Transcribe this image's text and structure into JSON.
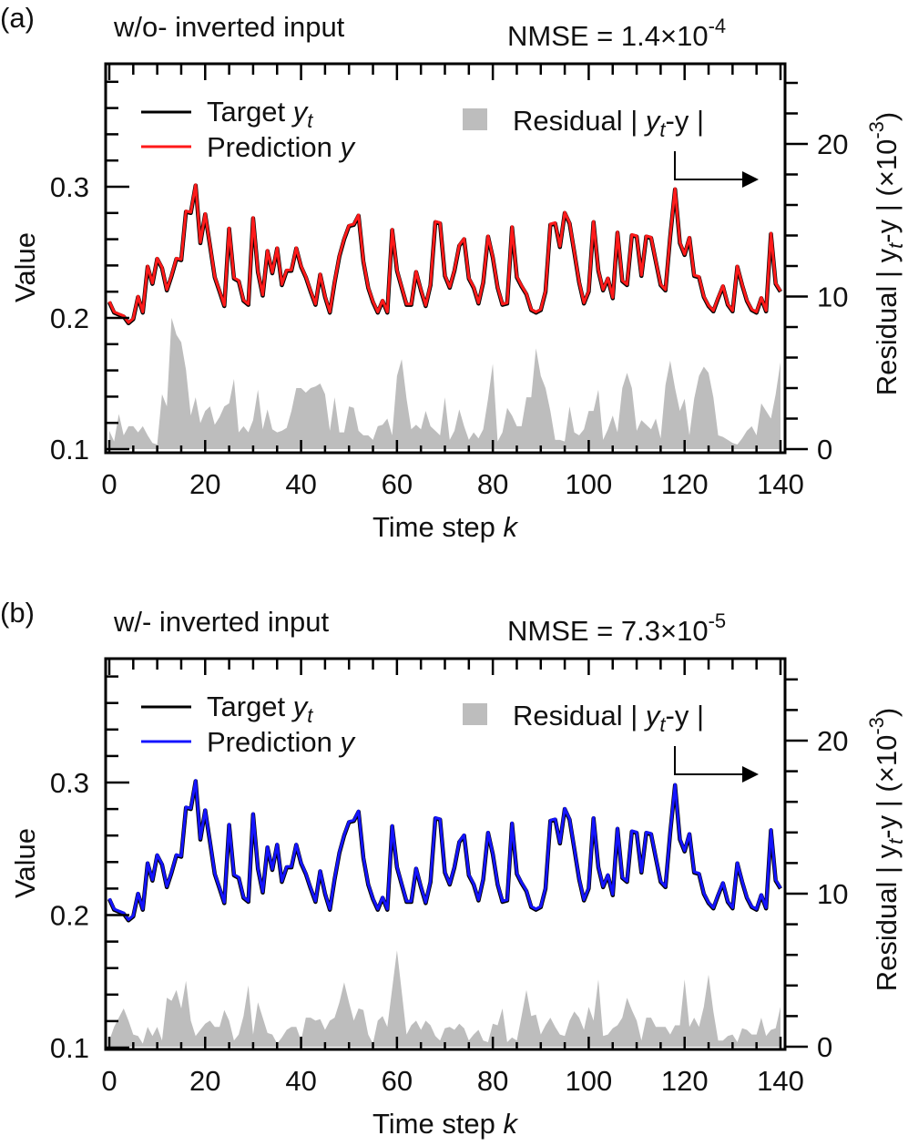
{
  "chart_data": [
    {
      "type": "line",
      "panel_label": "(a)",
      "title": "w/o- inverted input",
      "nmse_text": "NMSE = 1.4×10",
      "nmse_exp": "-4",
      "xlabel": "Time step ",
      "xlabel_var": "k",
      "ylabel": "Value",
      "y2label": "Residual | y",
      "y2label_sub": "t",
      "y2label_rest": "-y | (×10",
      "y2label_exp": "-3",
      "y2label_close": ")",
      "xlim": [
        -0.7,
        141
      ],
      "ylim": [
        0.1,
        0.394
      ],
      "y2lim": [
        0,
        25.3
      ],
      "xticks": [
        "0",
        "20",
        "40",
        "60",
        "80",
        "100",
        "120",
        "140"
      ],
      "yticks": [
        "0.1",
        "0.2",
        "0.3"
      ],
      "y2ticks": [
        "0",
        "10",
        "20"
      ],
      "legend": {
        "target": "Target ",
        "target_var": "y",
        "target_sub": "t",
        "prediction": "Prediction ",
        "prediction_var": "y",
        "residual": "Residual | ",
        "residual_var": "y",
        "residual_sub": "t",
        "residual_rest": "-y |"
      },
      "colors": {
        "target": "#000000",
        "prediction": "#ff1a1a",
        "residual": "#bdbdbd"
      },
      "target": [
        0.212,
        0.204,
        0.2025,
        0.201,
        0.196,
        0.199,
        0.216,
        0.204,
        0.239,
        0.226,
        0.245,
        0.238,
        0.221,
        0.232,
        0.245,
        0.244,
        0.281,
        0.28,
        0.301,
        0.257,
        0.279,
        0.255,
        0.231,
        0.22,
        0.209,
        0.268,
        0.23,
        0.228,
        0.213,
        0.21,
        0.276,
        0.235,
        0.217,
        0.251,
        0.234,
        0.253,
        0.225,
        0.236,
        0.236,
        0.253,
        0.239,
        0.231,
        0.22,
        0.21,
        0.233,
        0.216,
        0.204,
        0.227,
        0.247,
        0.26,
        0.27,
        0.271,
        0.278,
        0.243,
        0.223,
        0.212,
        0.204,
        0.213,
        0.204,
        0.267,
        0.236,
        0.223,
        0.21,
        0.21,
        0.235,
        0.221,
        0.209,
        0.225,
        0.273,
        0.272,
        0.232,
        0.223,
        0.236,
        0.255,
        0.26,
        0.23,
        0.223,
        0.211,
        0.227,
        0.262,
        0.246,
        0.223,
        0.21,
        0.211,
        0.269,
        0.231,
        0.224,
        0.218,
        0.206,
        0.204,
        0.206,
        0.22,
        0.271,
        0.272,
        0.254,
        0.28,
        0.272,
        0.25,
        0.227,
        0.211,
        0.22,
        0.273,
        0.236,
        0.221,
        0.23,
        0.215,
        0.265,
        0.228,
        0.225,
        0.263,
        0.262,
        0.232,
        0.262,
        0.261,
        0.243,
        0.225,
        0.221,
        0.262,
        0.298,
        0.257,
        0.248,
        0.261,
        0.232,
        0.231,
        0.216,
        0.209,
        0.205,
        0.215,
        0.224,
        0.21,
        0.205,
        0.239,
        0.225,
        0.213,
        0.206,
        0.204,
        0.215,
        0.205,
        0.264,
        0.226,
        0.22
      ],
      "residual_x1e-3": [
        1.2,
        0.5,
        2.3,
        0.9,
        1.5,
        1.5,
        1.1,
        1.5,
        0.9,
        0.4,
        0.3,
        3.6,
        2.8,
        8.6,
        7.5,
        7.0,
        5.2,
        2.2,
        3.4,
        1.7,
        2.5,
        2.8,
        1.6,
        2.1,
        2.8,
        3.0,
        4.6,
        1.1,
        1.5,
        1.1,
        1.9,
        3.9,
        1.3,
        2.6,
        1.3,
        1.1,
        1.2,
        1.4,
        2.5,
        4.0,
        4.0,
        3.7,
        4.0,
        4.1,
        4.3,
        3.6,
        1.2,
        3.4,
        1.1,
        1.1,
        2.8,
        2.7,
        1.2,
        0.9,
        0.9,
        0.6,
        1.5,
        1.6,
        2.0,
        0.9,
        4.8,
        5.9,
        3.3,
        1.3,
        1.6,
        1.3,
        2.5,
        1.5,
        1.2,
        0.9,
        3.4,
        0.6,
        1.2,
        2.6,
        1.5,
        0.6,
        1.1,
        0.7,
        1.3,
        3.3,
        5.6,
        0.5,
        1.1,
        2.7,
        2.2,
        1.5,
        1.5,
        3.4,
        3.4,
        6.6,
        4.8,
        4.0,
        2.5,
        0.6,
        0.6,
        0.5,
        2.8,
        1.1,
        0.9,
        1.3,
        2.5,
        2.5,
        3.9,
        0.6,
        1.3,
        2.2,
        1.1,
        4.0,
        5.0,
        4.0,
        1.2,
        1.9,
        1.6,
        1.3,
        2.0,
        0.7,
        4.2,
        5.8,
        4.0,
        2.5,
        3.3,
        0.9,
        3.3,
        4.8,
        5.4,
        5.0,
        3.4,
        0.9,
        0.8,
        0.6,
        0.4,
        0.3,
        0.7,
        1.2,
        1.5,
        0.9,
        3.0,
        2.5,
        2.0,
        3.6,
        5.7
      ]
    },
    {
      "type": "line",
      "panel_label": "(b)",
      "title": "w/- inverted input",
      "nmse_text": "NMSE = 7.3×10",
      "nmse_exp": "-5",
      "xlabel": "Time step ",
      "xlabel_var": "k",
      "ylabel": "Value",
      "y2label": "Residual | y",
      "y2label_sub": "t",
      "y2label_rest": "-y | (×10",
      "y2label_exp": "-3",
      "y2label_close": ")",
      "xlim": [
        -0.7,
        141
      ],
      "ylim": [
        0.1,
        0.393
      ],
      "y2lim": [
        0,
        25.3
      ],
      "xticks": [
        "0",
        "20",
        "40",
        "60",
        "80",
        "100",
        "120",
        "140"
      ],
      "yticks": [
        "0.1",
        "0.2",
        "0.3"
      ],
      "y2ticks": [
        "0",
        "10",
        "20"
      ],
      "legend": {
        "target": "Target ",
        "target_var": "y",
        "target_sub": "t",
        "prediction": "Prediction ",
        "prediction_var": "y",
        "residual": "Residual | ",
        "residual_var": "y",
        "residual_sub": "t",
        "residual_rest": "-y |"
      },
      "colors": {
        "target": "#000000",
        "prediction": "#1414ff",
        "residual": "#bdbdbd"
      },
      "target": [
        0.212,
        0.204,
        0.2025,
        0.201,
        0.196,
        0.199,
        0.216,
        0.204,
        0.239,
        0.226,
        0.245,
        0.238,
        0.221,
        0.232,
        0.245,
        0.244,
        0.281,
        0.28,
        0.301,
        0.257,
        0.279,
        0.255,
        0.231,
        0.22,
        0.209,
        0.268,
        0.23,
        0.228,
        0.213,
        0.21,
        0.276,
        0.235,
        0.217,
        0.251,
        0.234,
        0.253,
        0.225,
        0.236,
        0.236,
        0.253,
        0.239,
        0.231,
        0.22,
        0.21,
        0.233,
        0.216,
        0.204,
        0.227,
        0.247,
        0.26,
        0.27,
        0.271,
        0.278,
        0.243,
        0.223,
        0.212,
        0.204,
        0.213,
        0.204,
        0.267,
        0.236,
        0.223,
        0.21,
        0.21,
        0.235,
        0.221,
        0.209,
        0.225,
        0.273,
        0.272,
        0.232,
        0.223,
        0.236,
        0.255,
        0.26,
        0.23,
        0.223,
        0.211,
        0.227,
        0.262,
        0.246,
        0.223,
        0.21,
        0.211,
        0.269,
        0.231,
        0.224,
        0.218,
        0.206,
        0.204,
        0.206,
        0.22,
        0.271,
        0.272,
        0.254,
        0.28,
        0.272,
        0.25,
        0.227,
        0.211,
        0.22,
        0.273,
        0.236,
        0.221,
        0.23,
        0.215,
        0.265,
        0.228,
        0.225,
        0.263,
        0.262,
        0.232,
        0.262,
        0.261,
        0.243,
        0.225,
        0.221,
        0.262,
        0.298,
        0.257,
        0.248,
        0.261,
        0.232,
        0.231,
        0.216,
        0.209,
        0.205,
        0.215,
        0.224,
        0.21,
        0.205,
        0.239,
        0.225,
        0.213,
        0.206,
        0.204,
        0.215,
        0.205,
        0.264,
        0.226,
        0.22
      ],
      "residual_x1e-3": [
        0.4,
        1.3,
        1.9,
        2.5,
        1.7,
        0.8,
        0.7,
        0.2,
        1.3,
        0.7,
        1.3,
        0.4,
        3.2,
        3.0,
        3.7,
        2.5,
        4.3,
        1.7,
        0.7,
        1.1,
        1.5,
        1.7,
        1.3,
        1.3,
        2.4,
        1.7,
        0.4,
        0.8,
        2.0,
        4.0,
        0.8,
        2.9,
        1.9,
        0.9,
        0.8,
        0.2,
        0.6,
        1.1,
        1.3,
        1.3,
        0.4,
        1.9,
        1.9,
        1.7,
        1.8,
        1.1,
        1.7,
        1.9,
        2.9,
        4.2,
        2.9,
        1.7,
        2.5,
        2.4,
        0.8,
        0.2,
        1.7,
        2.0,
        1.3,
        3.8,
        6.3,
        3.6,
        0.8,
        1.4,
        1.7,
        1.1,
        1.7,
        1.4,
        0.7,
        0.4,
        1.2,
        1.3,
        1.1,
        1.5,
        1.2,
        0.4,
        0.8,
        1.1,
        0.4,
        0.3,
        1.5,
        1.4,
        2.5,
        0.3,
        0.6,
        0.4,
        2.0,
        3.7,
        2.0,
        2.1,
        0.8,
        1.4,
        1.9,
        1.3,
        0.8,
        0.7,
        1.7,
        2.3,
        1.9,
        1.1,
        2.6,
        1.7,
        4.4,
        0.7,
        0.8,
        1.2,
        1.4,
        1.9,
        3.2,
        2.4,
        1.7,
        0.4,
        1.9,
        1.9,
        1.3,
        1.3,
        1.3,
        0.8,
        1.4,
        1.4,
        4.4,
        1.3,
        1.9,
        1.3,
        2.6,
        4.7,
        2.3,
        0.4,
        0.4,
        0.7,
        0.8,
        0.3,
        1.2,
        1.1,
        0.8,
        0.8,
        1.9,
        0.7,
        1.1,
        1.2,
        2.6
      ]
    }
  ]
}
